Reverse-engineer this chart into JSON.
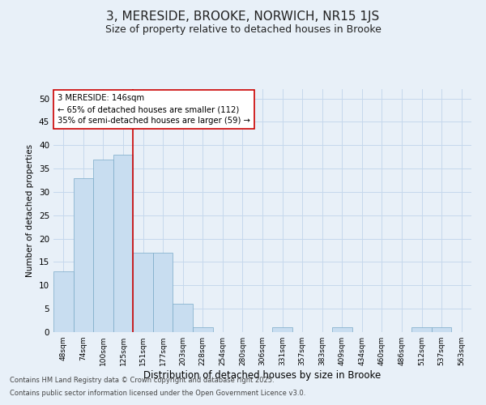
{
  "title_line1": "3, MERESIDE, BROOKE, NORWICH, NR15 1JS",
  "title_line2": "Size of property relative to detached houses in Brooke",
  "xlabel": "Distribution of detached houses by size in Brooke",
  "ylabel": "Number of detached properties",
  "bar_labels": [
    "48sqm",
    "74sqm",
    "100sqm",
    "125sqm",
    "151sqm",
    "177sqm",
    "203sqm",
    "228sqm",
    "254sqm",
    "280sqm",
    "306sqm",
    "331sqm",
    "357sqm",
    "383sqm",
    "409sqm",
    "434sqm",
    "460sqm",
    "486sqm",
    "512sqm",
    "537sqm",
    "563sqm"
  ],
  "bar_values": [
    13,
    33,
    37,
    38,
    17,
    17,
    6,
    1,
    0,
    0,
    0,
    1,
    0,
    0,
    1,
    0,
    0,
    0,
    1,
    1,
    0
  ],
  "bar_color": "#c8ddf0",
  "bar_edge_color": "#7aaac8",
  "grid_color": "#c5d8ec",
  "background_color": "#e8f0f8",
  "red_line_color": "#cc0000",
  "red_line_index": 3.5,
  "annotation_text": "3 MERESIDE: 146sqm\n← 65% of detached houses are smaller (112)\n35% of semi-detached houses are larger (59) →",
  "annotation_box_facecolor": "#ffffff",
  "annotation_box_edgecolor": "#cc0000",
  "ylim": [
    0,
    52
  ],
  "yticks": [
    0,
    5,
    10,
    15,
    20,
    25,
    30,
    35,
    40,
    45,
    50
  ],
  "footer_line1": "Contains HM Land Registry data © Crown copyright and database right 2025.",
  "footer_line2": "Contains public sector information licensed under the Open Government Licence v3.0."
}
